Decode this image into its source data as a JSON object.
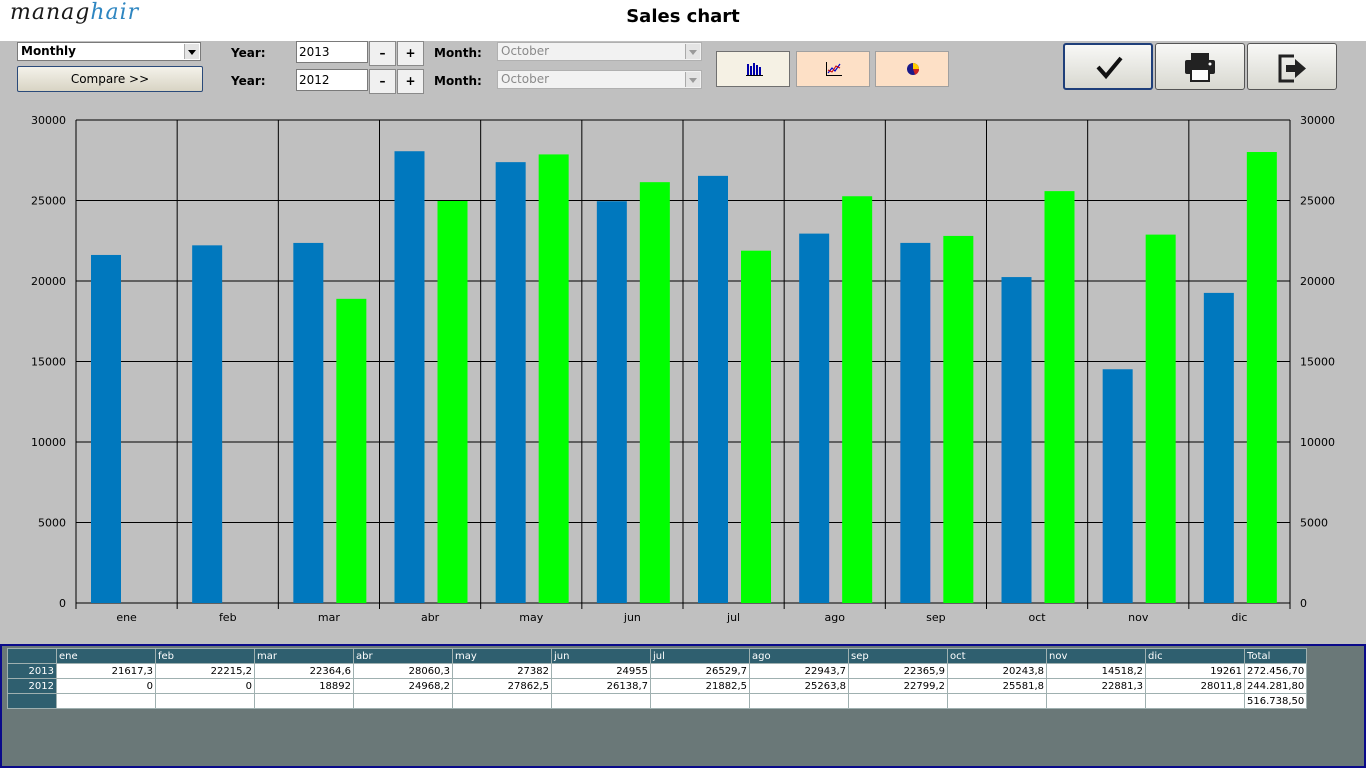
{
  "app": {
    "logo_part1": "manag",
    "logo_part2": "hair",
    "title": "Sales chart"
  },
  "controls": {
    "period_select": "Monthly",
    "compare_button": "Compare >>",
    "year_label": "Year:",
    "month_label": "Month:",
    "year1": "2013",
    "year2": "2012",
    "month1": "October",
    "month2": "October",
    "minus": "–",
    "plus": "+"
  },
  "chart_types": [
    {
      "name": "bar-chart-icon",
      "active": true
    },
    {
      "name": "line-chart-icon",
      "active": false
    },
    {
      "name": "pie-chart-icon",
      "active": false
    }
  ],
  "actions": [
    {
      "name": "confirm-icon"
    },
    {
      "name": "printer-icon"
    },
    {
      "name": "exit-icon"
    }
  ],
  "colors": {
    "series_2013": "#0078be",
    "series_2012": "#00ff00"
  },
  "chart_data": {
    "type": "bar",
    "categories": [
      "ene",
      "feb",
      "mar",
      "abr",
      "may",
      "jun",
      "jul",
      "ago",
      "sep",
      "oct",
      "nov",
      "dic"
    ],
    "series": [
      {
        "values": [
          21617.3,
          22215.2,
          22364.6,
          28060.3,
          27382,
          24955,
          26529.7,
          22943.7,
          22365.9,
          20243.8,
          14518.2,
          19261
        ]
      },
      {
        "values": [
          0,
          0,
          18892,
          24968.2,
          27862.5,
          26138.7,
          21882.5,
          25263.8,
          22799.2,
          25581.8,
          22881.3,
          28011.8
        ]
      }
    ],
    "ylim": [
      0,
      30000
    ],
    "yticks": [
      "0",
      "5000",
      "10000",
      "15000",
      "20000",
      "25000",
      "30000"
    ],
    "grid": true
  },
  "table": {
    "headers": [
      "ene",
      "feb",
      "mar",
      "abr",
      "may",
      "jun",
      "jul",
      "ago",
      "sep",
      "oct",
      "nov",
      "dic",
      "Total"
    ],
    "rows": [
      {
        "label": "2013",
        "values": [
          "21617,3",
          "22215,2",
          "22364,6",
          "28060,3",
          "27382",
          "24955",
          "26529,7",
          "22943,7",
          "22365,9",
          "20243,8",
          "14518,2",
          "19261"
        ],
        "total": "272.456,70"
      },
      {
        "label": "2012",
        "values": [
          "0",
          "0",
          "18892",
          "24968,2",
          "27862,5",
          "26138,7",
          "21882,5",
          "25263,8",
          "22799,2",
          "25581,8",
          "22881,3",
          "28011,8"
        ],
        "total": "244.281,80"
      },
      {
        "label": "",
        "values": [
          "",
          "",
          "",
          "",
          "",
          "",
          "",
          "",
          "",
          "",
          "",
          ""
        ],
        "total": "516.738,50"
      }
    ]
  }
}
